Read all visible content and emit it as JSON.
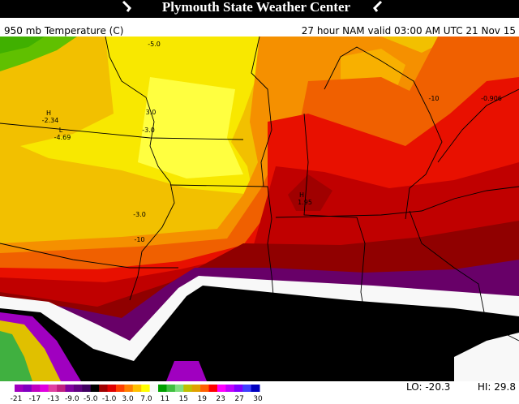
{
  "header": {
    "title": "Plymouth State Weather Center",
    "field": "950 mb Temperature (C)",
    "valid": "27 hour NAM valid 03:00 AM UTC 21 Nov 15"
  },
  "map_labels": [
    "-5.0",
    "3.0",
    "-3.0",
    "H",
    "-2.34",
    "L",
    "-4.69",
    "-3.0",
    "-10",
    "H",
    "1.95",
    "-10",
    "-0.906"
  ],
  "colorbar": {
    "labels": [
      "-21",
      "-17",
      "-13",
      "-9.0",
      "-5.0",
      "-1.0",
      "3.0",
      "7.0",
      "11",
      "15",
      "19",
      "23",
      "27",
      "30"
    ],
    "lo": "LO: -20.3",
    "hi": "HI: 29.8"
  }
}
